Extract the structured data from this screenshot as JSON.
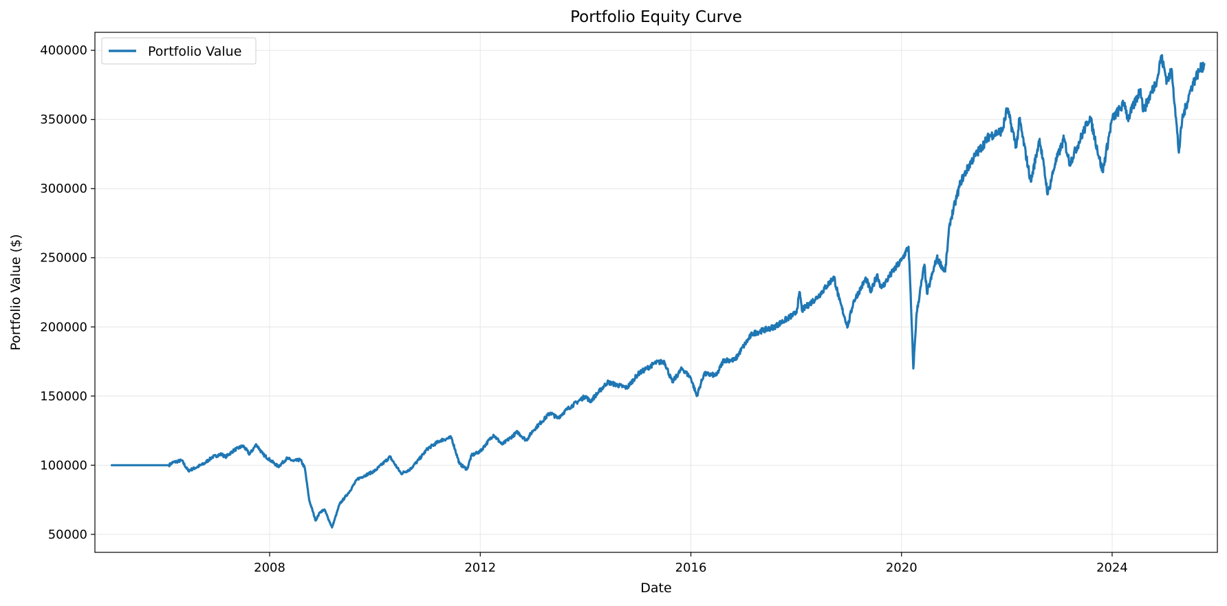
{
  "chart_data": {
    "type": "line",
    "title": "Portfolio Equity Curve",
    "xlabel": "Date",
    "ylabel": "Portfolio Value ($)",
    "x_ticks": [
      "2008",
      "2012",
      "2016",
      "2020",
      "2024"
    ],
    "y_ticks": [
      "50000",
      "100000",
      "150000",
      "200000",
      "250000",
      "300000",
      "350000",
      "400000"
    ],
    "ylim": [
      37000,
      413000
    ],
    "xlim": [
      "2004-09-06",
      "2025-12-31"
    ],
    "grid": true,
    "legend_position": "top-left",
    "colors": {
      "series": "#1f77b4",
      "grid": "#e6e6e6",
      "axes": "#000000"
    },
    "series": [
      {
        "name": "Portfolio Value",
        "points": [
          [
            "2005-01-01",
            100000
          ],
          [
            "2005-07-01",
            100000
          ],
          [
            "2006-01-01",
            100000
          ],
          [
            "2006-02-01",
            100000
          ],
          [
            "2006-03-01",
            102000
          ],
          [
            "2006-05-01",
            103500
          ],
          [
            "2006-06-15",
            96000
          ],
          [
            "2006-08-01",
            98000
          ],
          [
            "2006-10-01",
            101000
          ],
          [
            "2006-12-01",
            106000
          ],
          [
            "2007-02-01",
            108000
          ],
          [
            "2007-03-01",
            106000
          ],
          [
            "2007-05-01",
            111000
          ],
          [
            "2007-07-01",
            114000
          ],
          [
            "2007-08-15",
            108000
          ],
          [
            "2007-10-01",
            115000
          ],
          [
            "2007-11-15",
            108000
          ],
          [
            "2008-01-01",
            104000
          ],
          [
            "2008-03-01",
            99000
          ],
          [
            "2008-05-01",
            105000
          ],
          [
            "2008-06-15",
            103000
          ],
          [
            "2008-08-01",
            104000
          ],
          [
            "2008-09-01",
            98000
          ],
          [
            "2008-10-01",
            75000
          ],
          [
            "2008-11-15",
            60000
          ],
          [
            "2008-12-15",
            66000
          ],
          [
            "2009-01-15",
            68000
          ],
          [
            "2009-03-09",
            55000
          ],
          [
            "2009-05-01",
            72000
          ],
          [
            "2009-07-01",
            80000
          ],
          [
            "2009-09-01",
            90000
          ],
          [
            "2009-11-01",
            93000
          ],
          [
            "2010-01-01",
            96000
          ],
          [
            "2010-04-15",
            106000
          ],
          [
            "2010-07-01",
            94000
          ],
          [
            "2010-09-01",
            97000
          ],
          [
            "2010-11-01",
            104000
          ],
          [
            "2011-01-01",
            112000
          ],
          [
            "2011-04-01",
            118000
          ],
          [
            "2011-06-15",
            120000
          ],
          [
            "2011-08-10",
            101000
          ],
          [
            "2011-10-01",
            97000
          ],
          [
            "2011-11-01",
            107000
          ],
          [
            "2012-01-01",
            110000
          ],
          [
            "2012-04-01",
            122000
          ],
          [
            "2012-06-01",
            115000
          ],
          [
            "2012-09-15",
            124000
          ],
          [
            "2012-11-15",
            118000
          ],
          [
            "2013-01-01",
            125000
          ],
          [
            "2013-05-01",
            138000
          ],
          [
            "2013-06-20",
            134000
          ],
          [
            "2013-09-01",
            141000
          ],
          [
            "2013-12-31",
            150000
          ],
          [
            "2014-02-01",
            146000
          ],
          [
            "2014-06-01",
            160000
          ],
          [
            "2014-10-15",
            156000
          ],
          [
            "2014-12-31",
            166000
          ],
          [
            "2015-05-01",
            174000
          ],
          [
            "2015-07-01",
            175000
          ],
          [
            "2015-08-25",
            160000
          ],
          [
            "2015-11-01",
            170000
          ],
          [
            "2016-01-01",
            163000
          ],
          [
            "2016-02-11",
            150000
          ],
          [
            "2016-04-01",
            166000
          ],
          [
            "2016-06-27",
            165000
          ],
          [
            "2016-08-15",
            176000
          ],
          [
            "2016-11-01",
            176000
          ],
          [
            "2016-12-31",
            186000
          ],
          [
            "2017-03-01",
            195000
          ],
          [
            "2017-08-01",
            200000
          ],
          [
            "2017-12-31",
            210000
          ],
          [
            "2018-01-26",
            225000
          ],
          [
            "2018-02-09",
            212000
          ],
          [
            "2018-06-01",
            222000
          ],
          [
            "2018-09-20",
            236000
          ],
          [
            "2018-10-25",
            220000
          ],
          [
            "2018-12-24",
            200000
          ],
          [
            "2019-02-01",
            218000
          ],
          [
            "2019-04-30",
            235000
          ],
          [
            "2019-06-03",
            225000
          ],
          [
            "2019-07-15",
            238000
          ],
          [
            "2019-08-15",
            228000
          ],
          [
            "2019-11-01",
            240000
          ],
          [
            "2019-12-31",
            248000
          ],
          [
            "2020-02-19",
            258000
          ],
          [
            "2020-03-01",
            232000
          ],
          [
            "2020-03-23",
            170000
          ],
          [
            "2020-04-15",
            210000
          ],
          [
            "2020-06-08",
            245000
          ],
          [
            "2020-06-26",
            224000
          ],
          [
            "2020-09-02",
            250000
          ],
          [
            "2020-10-30",
            240000
          ],
          [
            "2020-12-01",
            275000
          ],
          [
            "2021-02-15",
            305000
          ],
          [
            "2021-05-01",
            320000
          ],
          [
            "2021-09-01",
            338000
          ],
          [
            "2021-12-01",
            342000
          ],
          [
            "2022-01-03",
            358000
          ],
          [
            "2022-03-08",
            330000
          ],
          [
            "2022-03-29",
            350000
          ],
          [
            "2022-06-16",
            305000
          ],
          [
            "2022-08-16",
            336000
          ],
          [
            "2022-10-12",
            296000
          ],
          [
            "2022-12-01",
            318000
          ],
          [
            "2023-02-01",
            336000
          ],
          [
            "2023-03-13",
            318000
          ],
          [
            "2023-07-31",
            352000
          ],
          [
            "2023-10-27",
            312000
          ],
          [
            "2023-12-31",
            350000
          ],
          [
            "2024-03-28",
            362000
          ],
          [
            "2024-04-19",
            350000
          ],
          [
            "2024-07-16",
            372000
          ],
          [
            "2024-08-05",
            356000
          ],
          [
            "2024-11-11",
            380000
          ],
          [
            "2024-12-06",
            396000
          ],
          [
            "2025-01-15",
            378000
          ],
          [
            "2025-02-19",
            385000
          ],
          [
            "2025-03-13",
            358000
          ],
          [
            "2025-04-08",
            326000
          ],
          [
            "2025-05-01",
            350000
          ],
          [
            "2025-06-30",
            372000
          ],
          [
            "2025-08-01",
            380000
          ],
          [
            "2025-09-01",
            386000
          ],
          [
            "2025-10-01",
            390000
          ]
        ]
      }
    ]
  }
}
